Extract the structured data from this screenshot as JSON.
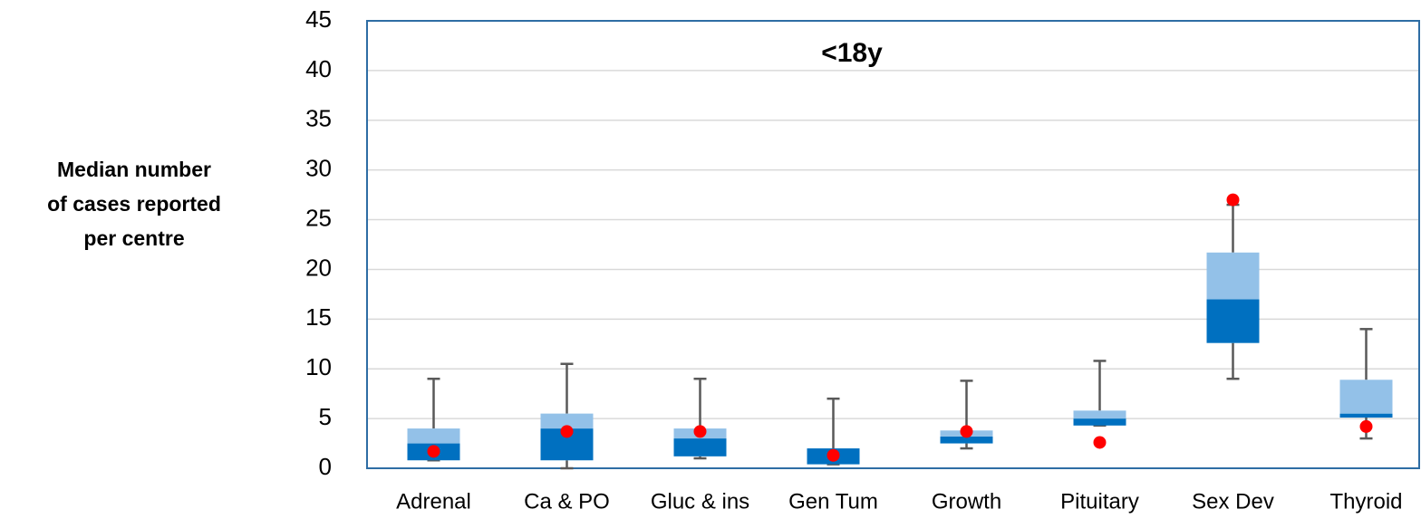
{
  "chart_data": {
    "type": "box",
    "title": "<18y",
    "ylabel": [
      "Median number",
      "of cases reported",
      "per centre"
    ],
    "categories": [
      "Adrenal",
      "Ca & PO",
      "Gluc & ins",
      "Gen Tum",
      "Growth",
      "Pituitary",
      "Sex Dev",
      "Thyroid"
    ],
    "boxes": [
      {
        "min": 0.8,
        "q1": 0.8,
        "median": 2.5,
        "q3": 4,
        "max": 9
      },
      {
        "min": 0,
        "q1": 0.8,
        "median": 4,
        "q3": 5.5,
        "max": 10.5
      },
      {
        "min": 1,
        "q1": 1.2,
        "median": 3,
        "q3": 4,
        "max": 9
      },
      {
        "min": 0.4,
        "q1": 0.4,
        "median": 2,
        "q3": 2,
        "max": 7
      },
      {
        "min": 2,
        "q1": 2.5,
        "median": 3.2,
        "q3": 3.8,
        "max": 8.8
      },
      {
        "min": 4.3,
        "q1": 4.3,
        "median": 5,
        "q3": 5.8,
        "max": 10.8
      },
      {
        "min": 9,
        "q1": 12.6,
        "median": 17,
        "q3": 21.7,
        "max": 26.5
      },
      {
        "min": 3,
        "q1": 5.1,
        "median": 5.5,
        "q3": 8.9,
        "max": 14
      }
    ],
    "points": [
      1.7,
      3.7,
      3.7,
      1.3,
      3.7,
      2.6,
      27,
      4.2
    ],
    "lower_color": "#0070c0",
    "upper_color": "#93c1e8",
    "whisker_color": "#595959",
    "point_color": "#ff0000",
    "ylim": [
      0,
      45
    ],
    "yticks": [
      0,
      5,
      10,
      15,
      20,
      25,
      30,
      35,
      40,
      45
    ],
    "grid": true
  }
}
